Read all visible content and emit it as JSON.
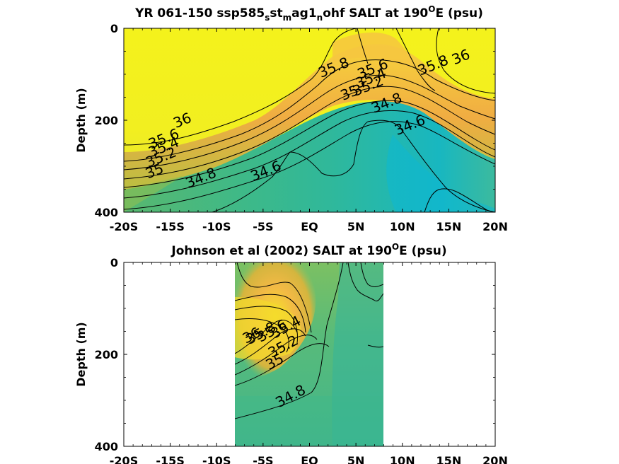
{
  "chart_data": [
    {
      "type": "heatmap",
      "title": "YR 061-150 ssp585_s st_m ag1_n ohf SALT at 190ᴼE (psu)",
      "title_parts": [
        "YR 061-150 ssp585",
        "s",
        "st",
        "m",
        "ag1",
        "n",
        "ohf SALT at 190",
        "O",
        "E (psu)"
      ],
      "ylabel": "Depth (m)",
      "xlabel": "",
      "xlim": [
        -20,
        20
      ],
      "ylim": [
        0,
        400
      ],
      "y_reversed": true,
      "x_ticks": [
        -20,
        -15,
        -10,
        -5,
        0,
        5,
        10,
        15,
        20
      ],
      "x_tick_labels": [
        "-20S",
        "-15S",
        "-10S",
        "-5S",
        "EQ",
        "5N",
        "10N",
        "15N",
        "20N"
      ],
      "y_ticks": [
        0,
        200,
        400
      ],
      "y_tick_labels": [
        "0",
        "200",
        "400"
      ],
      "data_extent_x": [
        -20,
        20
      ],
      "contour_levels": [
        34.6,
        34.8,
        35,
        35.2,
        35.4,
        35.6,
        35.8,
        36
      ],
      "contour_labels": [
        {
          "text": "36",
          "x": -13.5,
          "y": 210
        },
        {
          "text": "35.6",
          "x": -15.5,
          "y": 250
        },
        {
          "text": "35.4",
          "x": -15.5,
          "y": 268
        },
        {
          "text": "35.2",
          "x": -15.8,
          "y": 290
        },
        {
          "text": "35",
          "x": -16.5,
          "y": 320
        },
        {
          "text": "34.8",
          "x": -11.5,
          "y": 335
        },
        {
          "text": "34.6",
          "x": -4.5,
          "y": 320
        },
        {
          "text": "35.8",
          "x": 2.8,
          "y": 95
        },
        {
          "text": "35.6",
          "x": 7.0,
          "y": 98
        },
        {
          "text": "35.4",
          "x": 6.8,
          "y": 118
        },
        {
          "text": "35.2",
          "x": 6.5,
          "y": 135
        },
        {
          "text": "35",
          "x": 4.5,
          "y": 150
        },
        {
          "text": "34.8",
          "x": 8.5,
          "y": 172
        },
        {
          "text": "34.6",
          "x": 11.0,
          "y": 220
        },
        {
          "text": "35.8",
          "x": 13.5,
          "y": 90
        },
        {
          "text": "36",
          "x": 16.5,
          "y": 72
        }
      ]
    },
    {
      "type": "heatmap",
      "title": "Johnson et al (2002) SALT at 190ᴼE (psu)",
      "title_parts": [
        "Johnson et al (2002) SALT at 190",
        "O",
        "E (psu)"
      ],
      "ylabel": "Depth (m)",
      "xlabel": "",
      "xlim": [
        -20,
        20
      ],
      "ylim": [
        0,
        400
      ],
      "y_reversed": true,
      "x_ticks": [
        -20,
        -15,
        -10,
        -5,
        0,
        5,
        10,
        15,
        20
      ],
      "x_tick_labels": [
        "-20S",
        "-15S",
        "-10S",
        "-5S",
        "EQ",
        "5N",
        "10N",
        "15N",
        "20N"
      ],
      "y_ticks": [
        0,
        200,
        400
      ],
      "y_tick_labels": [
        "0",
        "200",
        "400"
      ],
      "data_extent_x": [
        -8,
        8
      ],
      "contour_levels": [
        34.8,
        35,
        35.2,
        35.4,
        35.6,
        35.8,
        36
      ],
      "contour_labels": [
        {
          "text": "35.4",
          "x": -2.3,
          "y": 150
        },
        {
          "text": "35.6",
          "x": -3.8,
          "y": 158
        },
        {
          "text": "35.8",
          "x": -5.0,
          "y": 163
        },
        {
          "text": "36",
          "x": -6.0,
          "y": 168
        },
        {
          "text": "35.2",
          "x": -2.6,
          "y": 192
        },
        {
          "text": "35",
          "x": -3.5,
          "y": 225
        },
        {
          "text": "34.8",
          "x": -1.8,
          "y": 300
        }
      ]
    }
  ]
}
